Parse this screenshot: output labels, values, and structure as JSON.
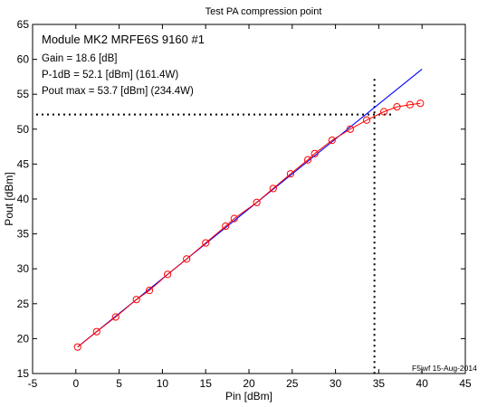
{
  "chart_data": {
    "type": "line",
    "title": "Test PA compression point",
    "xlabel": "Pin [dBm]",
    "ylabel": "Pout [dBm]",
    "xlim": [
      -5,
      45
    ],
    "ylim": [
      15,
      65
    ],
    "x_ticks": [
      -5,
      0,
      5,
      10,
      15,
      20,
      25,
      30,
      35,
      40,
      45
    ],
    "y_ticks": [
      15,
      20,
      25,
      30,
      35,
      40,
      45,
      50,
      55,
      60,
      65
    ],
    "grid": false,
    "annotations": {
      "heading": "Module MK2 MRFE6S 9160 #1",
      "lines": [
        "Gain = 18.6 [dB]",
        "P-1dB = 52.1 [dBm] (161.4W)",
        "Pout max = 53.7 [dBm] (234.4W)"
      ],
      "footer": "F5jwf 15-Aug-2014"
    },
    "series": [
      {
        "role": "measured",
        "color": "#ff0000",
        "marker": "circle",
        "x": [
          0.2,
          2.4,
          4.6,
          7.0,
          8.5,
          10.6,
          12.8,
          15.0,
          17.3,
          18.3,
          20.9,
          22.8,
          24.8,
          26.8,
          27.6,
          29.6,
          31.7,
          33.6,
          35.6,
          37.1,
          38.6,
          39.8
        ],
        "y": [
          18.8,
          21.0,
          23.1,
          25.6,
          26.9,
          29.2,
          31.4,
          33.7,
          36.1,
          37.2,
          39.5,
          41.5,
          43.6,
          45.6,
          46.5,
          48.4,
          50.0,
          51.3,
          52.5,
          53.2,
          53.5,
          53.7
        ]
      },
      {
        "role": "linear-fit",
        "color": "#0000ff",
        "x": [
          0.2,
          40.0
        ],
        "y": [
          18.8,
          58.6
        ]
      }
    ],
    "reference_lines": [
      {
        "orientation": "horizontal",
        "value": 52.1,
        "color": "#000000",
        "style": "dotted"
      },
      {
        "orientation": "vertical",
        "value": 34.5,
        "color": "#000000",
        "style": "dotted"
      }
    ]
  }
}
